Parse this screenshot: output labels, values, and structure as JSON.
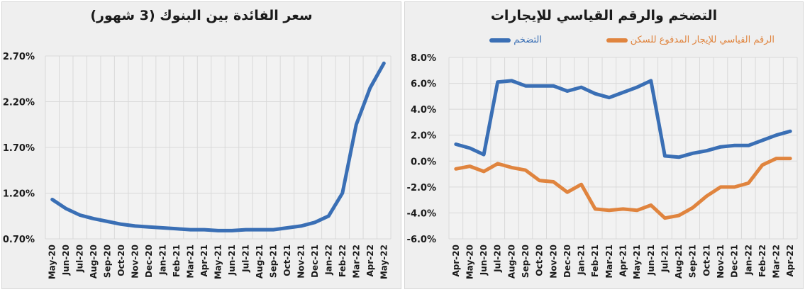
{
  "colors": {
    "blue": "#3a6fb5",
    "orange": "#e0843e",
    "grid": "#d9d9d9",
    "panel_bg": "#efefef",
    "text": "#1a1a1a"
  },
  "left": {
    "title": "سعر الفائدة بين البنوك (3 شهور)"
  },
  "right": {
    "title": "التضخم والرقم القياسي للإيجارات",
    "legend": [
      {
        "label": "التضخم",
        "color": "#3a6fb5"
      },
      {
        "label": "الرقم القياسي للإيجار المدفوع للسكن",
        "color": "#e0843e"
      }
    ]
  },
  "chart_data": [
    {
      "type": "line",
      "title": "سعر الفائدة بين البنوك (3 شهور)",
      "xlabel": "",
      "ylabel": "",
      "ylim": [
        0.7,
        2.7
      ],
      "yticks": [
        "0.70%",
        "1.20%",
        "1.70%",
        "2.20%",
        "2.70%"
      ],
      "ytick_values": [
        0.7,
        1.2,
        1.7,
        2.2,
        2.7
      ],
      "grid": true,
      "categories": [
        "May-20",
        "Jun-20",
        "Jul-20",
        "Aug-20",
        "Sep-20",
        "Oct-20",
        "Nov-20",
        "Dec-20",
        "Jan-21",
        "Feb-21",
        "Mar-21",
        "Apr-21",
        "May-21",
        "Jun-21",
        "Jul-21",
        "Aug-21",
        "Sep-21",
        "Oct-21",
        "Nov-21",
        "Dec-21",
        "Jan-22",
        "Feb-22",
        "Mar-22",
        "Apr-22",
        "May-22"
      ],
      "series": [
        {
          "name": "سعر الفائدة بين البنوك",
          "color": "#3a6fb5",
          "values": [
            1.13,
            1.03,
            0.96,
            0.92,
            0.89,
            0.86,
            0.84,
            0.83,
            0.82,
            0.81,
            0.8,
            0.8,
            0.79,
            0.79,
            0.8,
            0.8,
            0.8,
            0.82,
            0.84,
            0.88,
            0.95,
            1.2,
            1.95,
            2.35,
            2.62
          ]
        }
      ]
    },
    {
      "type": "line",
      "title": "التضخم والرقم القياسي للإيجارات",
      "xlabel": "",
      "ylabel": "",
      "ylim": [
        -6.0,
        8.0
      ],
      "yticks": [
        "-6.0%",
        "-4.0%",
        "-2.0%",
        "0.0%",
        "2.0%",
        "4.0%",
        "6.0%",
        "8.0%"
      ],
      "ytick_values": [
        -6,
        -4,
        -2,
        0,
        2,
        4,
        6,
        8
      ],
      "grid": true,
      "legend_position": "top",
      "categories": [
        "Apr-20",
        "May-20",
        "Jun-20",
        "Jul-20",
        "Aug-20",
        "Sep-20",
        "Oct-20",
        "Nov-20",
        "Dec-20",
        "Jan-21",
        "Feb-21",
        "Mar-21",
        "Apr-21",
        "May-21",
        "Jun-21",
        "Jul-21",
        "Aug-21",
        "Sep-21",
        "Oct-21",
        "Nov-21",
        "Dec-21",
        "Jan-22",
        "Feb-22",
        "Mar-22",
        "Apr-22"
      ],
      "series": [
        {
          "name": "التضخم",
          "color": "#3a6fb5",
          "values": [
            1.3,
            1.0,
            0.5,
            6.1,
            6.2,
            5.8,
            5.8,
            5.8,
            5.4,
            5.7,
            5.2,
            4.9,
            5.3,
            5.7,
            6.2,
            0.4,
            0.3,
            0.6,
            0.8,
            1.1,
            1.2,
            1.2,
            1.6,
            2.0,
            2.3
          ]
        },
        {
          "name": "الرقم القياسي للإيجار المدفوع للسكن",
          "color": "#e0843e",
          "values": [
            -0.6,
            -0.4,
            -0.8,
            -0.2,
            -0.5,
            -0.7,
            -1.5,
            -1.6,
            -2.4,
            -1.8,
            -3.7,
            -3.8,
            -3.7,
            -3.8,
            -3.4,
            -4.4,
            -4.2,
            -3.6,
            -2.7,
            -2.0,
            -2.0,
            -1.7,
            -0.3,
            0.2,
            0.2
          ]
        }
      ]
    }
  ]
}
